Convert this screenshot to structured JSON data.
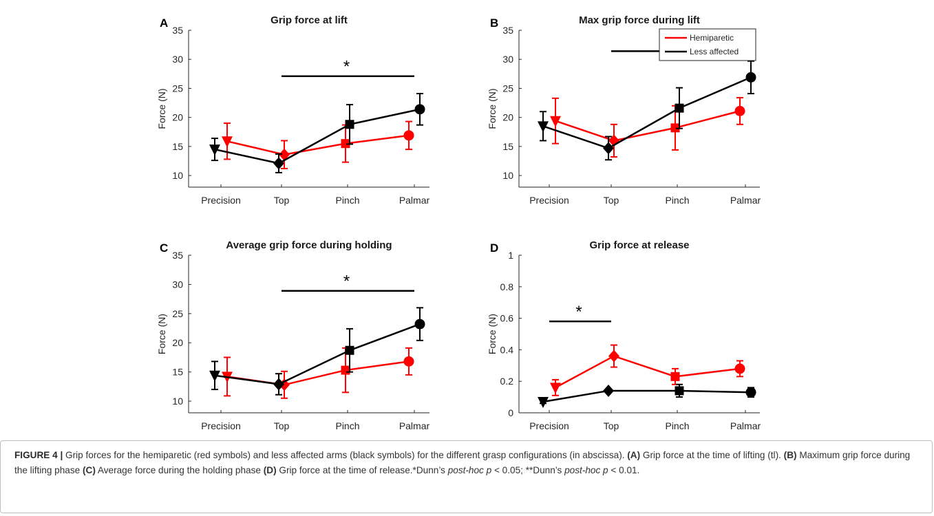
{
  "chart_data": [
    {
      "panel": "A",
      "type": "line",
      "title": "Grip force at lift",
      "ylabel": "Force (N)",
      "xlabel": "",
      "categories": [
        "Precision",
        "Top",
        "Pinch",
        "Palmar"
      ],
      "ylim": [
        8,
        35
      ],
      "yticks": [
        10,
        15,
        20,
        25,
        30,
        35
      ],
      "grid": false,
      "series": [
        {
          "color": "#ff0000",
          "markers": [
            "triangle-down",
            "diamond",
            "square",
            "circle"
          ],
          "values": [
            15.9,
            13.6,
            15.5,
            16.9
          ],
          "error": [
            3.1,
            2.4,
            3.2,
            2.4
          ]
        },
        {
          "color": "#000000",
          "markers": [
            "triangle-down",
            "diamond",
            "square",
            "circle"
          ],
          "values": [
            14.5,
            12.1,
            18.8,
            21.4
          ],
          "error": [
            1.9,
            1.6,
            3.4,
            2.7
          ]
        }
      ],
      "significance": [
        {
          "from": "Top",
          "to": "Palmar",
          "label": "*",
          "y": 27.1
        }
      ]
    },
    {
      "panel": "B",
      "type": "line",
      "title": "Max grip force during lift",
      "ylabel": "Force (N)",
      "xlabel": "",
      "categories": [
        "Precision",
        "Top",
        "Pinch",
        "Palmar"
      ],
      "ylim": [
        8,
        35
      ],
      "yticks": [
        10,
        15,
        20,
        25,
        30,
        35
      ],
      "grid": false,
      "series": [
        {
          "color": "#ff0000",
          "markers": [
            "triangle-down",
            "diamond",
            "square",
            "circle"
          ],
          "values": [
            19.4,
            16.0,
            18.2,
            21.1
          ],
          "error": [
            3.9,
            2.8,
            3.8,
            2.3
          ]
        },
        {
          "color": "#000000",
          "markers": [
            "triangle-down",
            "diamond",
            "square",
            "circle"
          ],
          "values": [
            18.5,
            14.7,
            21.6,
            26.9
          ],
          "error": [
            2.5,
            2.0,
            3.5,
            2.8
          ]
        }
      ],
      "significance": [
        {
          "from": "Top",
          "to": "Palmar",
          "label": "**",
          "y": 31.4
        }
      ]
    },
    {
      "panel": "C",
      "type": "line",
      "title": "Average grip force during holding",
      "ylabel": "Force (N)",
      "xlabel": "",
      "categories": [
        "Precision",
        "Top",
        "Pinch",
        "Palmar"
      ],
      "ylim": [
        8,
        35
      ],
      "yticks": [
        10,
        15,
        20,
        25,
        30,
        35
      ],
      "grid": false,
      "series": [
        {
          "color": "#ff0000",
          "markers": [
            "triangle-down",
            "diamond",
            "square",
            "circle"
          ],
          "values": [
            14.2,
            12.8,
            15.3,
            16.8
          ],
          "error": [
            3.3,
            2.3,
            3.8,
            2.3
          ]
        },
        {
          "color": "#000000",
          "markers": [
            "triangle-down",
            "diamond",
            "square",
            "circle"
          ],
          "values": [
            14.4,
            12.9,
            18.7,
            23.2
          ],
          "error": [
            2.4,
            1.8,
            3.7,
            2.8
          ]
        }
      ],
      "significance": [
        {
          "from": "Top",
          "to": "Palmar",
          "label": "*",
          "y": 28.9
        }
      ]
    },
    {
      "panel": "D",
      "type": "line",
      "title": "Grip force at release",
      "ylabel": "Force (N)",
      "xlabel": "",
      "categories": [
        "Precision",
        "Top",
        "Pinch",
        "Palmar"
      ],
      "ylim": [
        0,
        1
      ],
      "yticks": [
        0,
        0.2,
        0.4,
        0.6,
        0.8,
        1
      ],
      "grid": false,
      "legend": {
        "position": "top-right"
      },
      "series": [
        {
          "name": "Hemiparetic",
          "color": "#ff0000",
          "markers": [
            "triangle-down",
            "diamond",
            "square",
            "circle"
          ],
          "values": [
            0.16,
            0.36,
            0.23,
            0.28
          ],
          "error": [
            0.05,
            0.07,
            0.05,
            0.05
          ]
        },
        {
          "name": "Less affected",
          "color": "#000000",
          "markers": [
            "triangle-down",
            "diamond",
            "square",
            "circle"
          ],
          "values": [
            0.07,
            0.14,
            0.14,
            0.13
          ],
          "error": [
            0.01,
            0.01,
            0.04,
            0.03
          ]
        }
      ],
      "significance": [
        {
          "from": "Precision",
          "to": "Top",
          "label": "*",
          "y": 0.58
        }
      ]
    }
  ],
  "caption": {
    "label": "FIGURE 4 |",
    "intro": " Grip forces for the hemiparetic (red symbols) and less affected arms (black symbols) for the different grasp configurations (in abscissa). ",
    "a_tag": "(A)",
    "a_text": " Grip force at the time of lifting (tl). ",
    "b_tag": "(B)",
    "b_text": " Maximum grip force during the lifting phase ",
    "c_tag": "(C)",
    "c_text": " Average force during the holding phase ",
    "d_tag": "(D)",
    "d_text": " Grip force at the time of release.*Dunn’s ",
    "posthoc_1": "post-hoc",
    "p_1": " p",
    "thr_1": " < 0.05; **Dunn’s ",
    "posthoc_2": "post-hoc",
    "p_2": " p",
    "thr_2": " < 0.01."
  }
}
